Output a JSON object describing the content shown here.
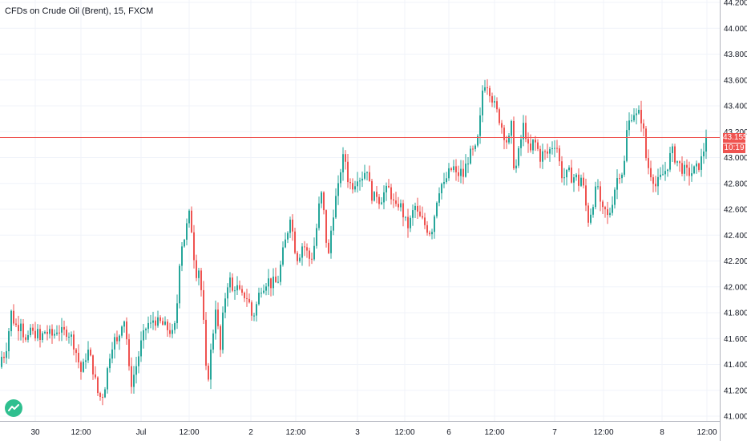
{
  "legend": {
    "symbol": "CFDs on Crude Oil (Brent)",
    "separator": ", ",
    "interval": "15",
    "exchange": "FXCM"
  },
  "colors": {
    "up": "#26a69a",
    "down": "#ef5350",
    "grid": "#f0f3fa",
    "axis_text": "#131722",
    "price_line": "#ef5350"
  },
  "current_price": {
    "value": "43.155",
    "numeric": 43.155,
    "countdown": "10:19"
  },
  "icons": {
    "logo": "tradingview-logo-icon"
  },
  "chart_data": {
    "type": "candlestick",
    "title": "CFDs on Crude Oil (Brent), 15, FXCM",
    "ylim": [
      40.98,
      44.22
    ],
    "y_ticks": [
      "44.200",
      "44.000",
      "43.800",
      "43.600",
      "43.400",
      "43.200",
      "43.000",
      "42.800",
      "42.600",
      "42.400",
      "42.200",
      "42.000",
      "41.800",
      "41.600",
      "41.400",
      "41.200",
      "41.000"
    ],
    "x_tick_labels": [
      "30",
      "12:00",
      "Jul",
      "12:00",
      "2",
      "12:00",
      "3",
      "12:00",
      "6",
      "12:00",
      "7",
      "12:00",
      "8",
      "12:00"
    ],
    "grid": true,
    "last": 43.155,
    "close_path": [
      [
        0,
        41.38
      ],
      [
        3,
        41.5
      ],
      [
        6,
        41.46
      ],
      [
        10,
        41.62
      ],
      [
        14,
        41.8
      ],
      [
        18,
        41.72
      ],
      [
        22,
        41.68
      ],
      [
        26,
        41.75
      ],
      [
        30,
        41.6
      ],
      [
        34,
        41.55
      ],
      [
        38,
        41.68
      ],
      [
        42,
        41.62
      ],
      [
        46,
        41.66
      ],
      [
        50,
        41.58
      ],
      [
        55,
        41.66
      ],
      [
        60,
        41.64
      ],
      [
        66,
        41.62
      ],
      [
        72,
        41.68
      ],
      [
        78,
        41.64
      ],
      [
        84,
        41.66
      ],
      [
        90,
        41.6
      ],
      [
        94,
        41.52
      ],
      [
        98,
        41.42
      ],
      [
        102,
        41.32
      ],
      [
        106,
        41.45
      ],
      [
        110,
        41.5
      ],
      [
        114,
        41.42
      ],
      [
        118,
        41.3
      ],
      [
        122,
        41.18
      ],
      [
        126,
        41.14
      ],
      [
        130,
        41.2
      ],
      [
        134,
        41.36
      ],
      [
        138,
        41.52
      ],
      [
        142,
        41.6
      ],
      [
        146,
        41.56
      ],
      [
        150,
        41.66
      ],
      [
        154,
        41.8
      ],
      [
        158,
        41.6
      ],
      [
        161,
        41.35
      ],
      [
        164,
        41.26
      ],
      [
        168,
        41.34
      ],
      [
        172,
        41.44
      ],
      [
        176,
        41.56
      ],
      [
        180,
        41.64
      ],
      [
        184,
        41.72
      ],
      [
        188,
        41.7
      ],
      [
        192,
        41.76
      ],
      [
        196,
        41.72
      ],
      [
        200,
        41.72
      ],
      [
        204,
        41.7
      ],
      [
        208,
        41.68
      ],
      [
        212,
        41.66
      ],
      [
        216,
        41.62
      ],
      [
        220,
        41.76
      ],
      [
        222,
        42.0
      ],
      [
        224,
        42.2
      ],
      [
        226,
        42.32
      ],
      [
        230,
        42.38
      ],
      [
        234,
        42.5
      ],
      [
        237,
        42.58
      ],
      [
        240,
        42.38
      ],
      [
        244,
        42.1
      ],
      [
        248,
        42.14
      ],
      [
        252,
        41.92
      ],
      [
        256,
        41.5
      ],
      [
        258,
        41.2
      ],
      [
        262,
        41.44
      ],
      [
        266,
        41.66
      ],
      [
        270,
        41.92
      ],
      [
        274,
        41.42
      ],
      [
        278,
        41.76
      ],
      [
        282,
        41.98
      ],
      [
        286,
        42.08
      ],
      [
        290,
        41.96
      ],
      [
        294,
        42.02
      ],
      [
        298,
        41.96
      ],
      [
        302,
        41.92
      ],
      [
        306,
        41.94
      ],
      [
        310,
        41.9
      ],
      [
        314,
        41.78
      ],
      [
        318,
        41.8
      ],
      [
        322,
        41.92
      ],
      [
        326,
        42.0
      ],
      [
        330,
        42.02
      ],
      [
        334,
        42.06
      ],
      [
        338,
        42.02
      ],
      [
        342,
        42.04
      ],
      [
        346,
        42.02
      ],
      [
        350,
        42.16
      ],
      [
        354,
        42.3
      ],
      [
        358,
        42.4
      ],
      [
        362,
        42.56
      ],
      [
        366,
        42.38
      ],
      [
        370,
        42.22
      ],
      [
        374,
        42.26
      ],
      [
        378,
        42.34
      ],
      [
        382,
        42.28
      ],
      [
        386,
        42.22
      ],
      [
        390,
        42.24
      ],
      [
        394,
        42.4
      ],
      [
        398,
        42.62
      ],
      [
        402,
        42.74
      ],
      [
        406,
        42.4
      ],
      [
        410,
        42.24
      ],
      [
        414,
        42.5
      ],
      [
        418,
        42.66
      ],
      [
        422,
        42.76
      ],
      [
        426,
        42.96
      ],
      [
        430,
        43.02
      ],
      [
        434,
        42.84
      ],
      [
        438,
        42.78
      ],
      [
        442,
        42.8
      ],
      [
        446,
        42.86
      ],
      [
        450,
        42.84
      ],
      [
        454,
        42.88
      ],
      [
        458,
        42.92
      ],
      [
        462,
        42.74
      ],
      [
        466,
        42.68
      ],
      [
        470,
        42.72
      ],
      [
        474,
        42.66
      ],
      [
        478,
        42.72
      ],
      [
        482,
        42.74
      ],
      [
        486,
        42.76
      ],
      [
        490,
        42.66
      ],
      [
        494,
        42.6
      ],
      [
        498,
        42.66
      ],
      [
        502,
        42.58
      ],
      [
        506,
        42.5
      ],
      [
        510,
        42.46
      ],
      [
        514,
        42.56
      ],
      [
        518,
        42.62
      ],
      [
        522,
        42.54
      ],
      [
        526,
        42.52
      ],
      [
        530,
        42.48
      ],
      [
        534,
        42.44
      ],
      [
        538,
        42.42
      ],
      [
        542,
        42.56
      ],
      [
        546,
        42.72
      ],
      [
        550,
        42.8
      ],
      [
        554,
        42.78
      ],
      [
        558,
        42.86
      ],
      [
        562,
        42.9
      ],
      [
        566,
        42.92
      ],
      [
        570,
        42.84
      ],
      [
        574,
        42.9
      ],
      [
        578,
        42.86
      ],
      [
        582,
        42.96
      ],
      [
        586,
        43.02
      ],
      [
        590,
        43.04
      ],
      [
        594,
        43.06
      ],
      [
        598,
        43.22
      ],
      [
        602,
        43.52
      ],
      [
        606,
        43.6
      ],
      [
        610,
        43.54
      ],
      [
        614,
        43.46
      ],
      [
        618,
        43.38
      ],
      [
        622,
        43.32
      ],
      [
        626,
        43.24
      ],
      [
        630,
        43.16
      ],
      [
        634,
        43.1
      ],
      [
        638,
        43.24
      ],
      [
        642,
        42.86
      ],
      [
        646,
        43.0
      ],
      [
        650,
        43.14
      ],
      [
        654,
        43.28
      ],
      [
        658,
        43.08
      ],
      [
        662,
        43.04
      ],
      [
        666,
        43.14
      ],
      [
        670,
        43.08
      ],
      [
        674,
        43.0
      ],
      [
        678,
        43.04
      ],
      [
        682,
        43.02
      ],
      [
        686,
        43.06
      ],
      [
        690,
        43.1
      ],
      [
        694,
        43.12
      ],
      [
        698,
        42.96
      ],
      [
        702,
        42.84
      ],
      [
        706,
        42.86
      ],
      [
        710,
        42.88
      ],
      [
        714,
        42.84
      ],
      [
        718,
        42.86
      ],
      [
        722,
        42.8
      ],
      [
        726,
        42.86
      ],
      [
        730,
        42.66
      ],
      [
        734,
        42.52
      ],
      [
        738,
        42.6
      ],
      [
        742,
        42.72
      ],
      [
        746,
        42.78
      ],
      [
        750,
        42.56
      ],
      [
        754,
        42.6
      ],
      [
        758,
        42.54
      ],
      [
        762,
        42.6
      ],
      [
        766,
        42.74
      ],
      [
        770,
        42.84
      ],
      [
        774,
        42.9
      ],
      [
        778,
        42.88
      ],
      [
        782,
        43.2
      ],
      [
        786,
        43.3
      ],
      [
        790,
        43.36
      ],
      [
        794,
        43.32
      ],
      [
        798,
        43.34
      ],
      [
        802,
        43.26
      ],
      [
        806,
        43.0
      ],
      [
        810,
        42.9
      ],
      [
        814,
        42.86
      ],
      [
        818,
        42.78
      ],
      [
        822,
        42.82
      ],
      [
        826,
        42.86
      ],
      [
        830,
        42.9
      ],
      [
        834,
        42.96
      ],
      [
        838,
        43.06
      ],
      [
        842,
        43.0
      ],
      [
        846,
        42.96
      ],
      [
        850,
        42.92
      ],
      [
        854,
        42.9
      ],
      [
        858,
        42.88
      ],
      [
        862,
        42.88
      ],
      [
        866,
        42.9
      ],
      [
        870,
        42.92
      ],
      [
        874,
        42.96
      ],
      [
        878,
        43.06
      ],
      [
        882,
        43.155
      ]
    ]
  }
}
